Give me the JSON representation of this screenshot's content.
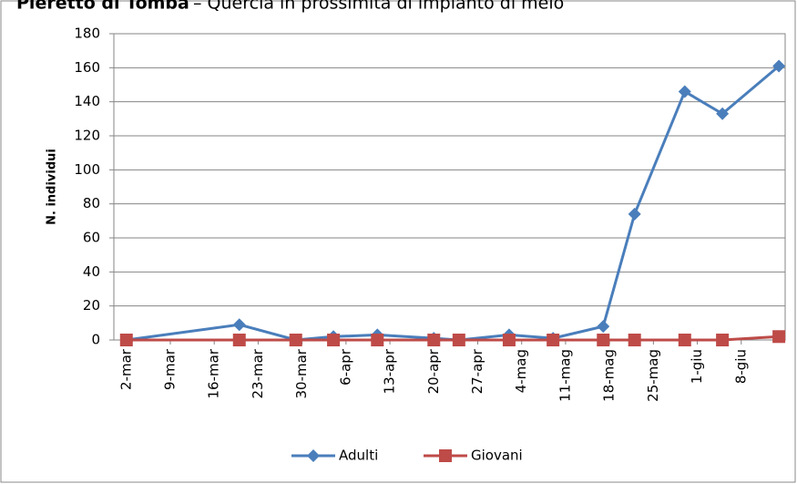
{
  "chart_data": {
    "type": "line",
    "title": "Pieretto di Tomba",
    "subtitle": "– Quercia in prossimità di impianto di melo",
    "y_label": "N. individui",
    "x": [
      0,
      18,
      27,
      33,
      40,
      49,
      53,
      61,
      68,
      76,
      81,
      89,
      95,
      104
    ],
    "series": [
      {
        "name": "Adulti",
        "color": "#4a7ebb",
        "marker": "diamond",
        "values": [
          0,
          9,
          0,
          2,
          3,
          1,
          0,
          3,
          1,
          8,
          74,
          146,
          133,
          161
        ]
      },
      {
        "name": "Giovani",
        "color": "#be4b48",
        "marker": "square",
        "values": [
          0,
          0,
          0,
          0,
          0,
          0,
          0,
          0,
          0,
          0,
          0,
          0,
          0,
          2
        ]
      }
    ],
    "xlim": [
      -2,
      105
    ],
    "xticks": [
      {
        "value": 0,
        "label": "2-mar"
      },
      {
        "value": 7,
        "label": "9-mar"
      },
      {
        "value": 14,
        "label": "16-mar"
      },
      {
        "value": 21,
        "label": "23-mar"
      },
      {
        "value": 28,
        "label": "30-mar"
      },
      {
        "value": 35,
        "label": "6-apr"
      },
      {
        "value": 42,
        "label": "13-apr"
      },
      {
        "value": 49,
        "label": "20-apr"
      },
      {
        "value": 56,
        "label": "27-apr"
      },
      {
        "value": 63,
        "label": "4-mag"
      },
      {
        "value": 70,
        "label": "11-mag"
      },
      {
        "value": 77,
        "label": "18-mag"
      },
      {
        "value": 84,
        "label": "25-mag"
      },
      {
        "value": 91,
        "label": "1-giu"
      },
      {
        "value": 98,
        "label": "8-giu"
      }
    ],
    "ylim": [
      0,
      180
    ],
    "yticks": [
      0,
      20,
      40,
      60,
      80,
      100,
      120,
      140,
      160,
      180
    ],
    "grid": true,
    "legend": "bottom"
  }
}
